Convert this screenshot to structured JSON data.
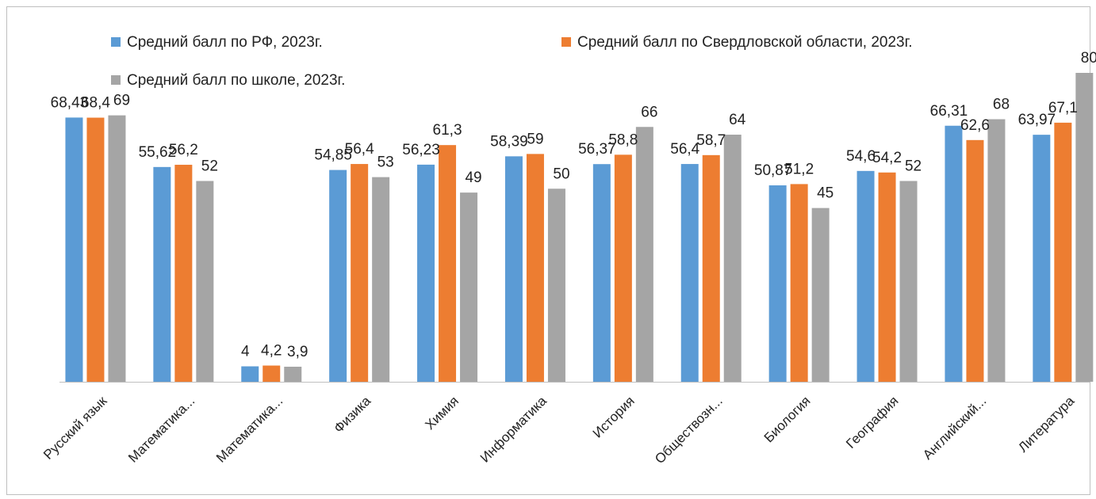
{
  "chart_data": {
    "type": "bar",
    "categories": [
      "Русский язык",
      "Математика...",
      "Математика...",
      "Физика",
      "Химия",
      "Информатика",
      "История",
      "Обществозн...",
      "Биология",
      "География",
      "Английский...",
      "Литература"
    ],
    "series": [
      {
        "name": "Средний балл по РФ, 2023г.",
        "color": "#5b9bd5",
        "values": [
          68.43,
          55.62,
          4,
          54.85,
          56.23,
          58.39,
          56.37,
          56.4,
          50.87,
          54.6,
          66.31,
          63.97
        ],
        "value_labels": [
          "68,43",
          "55,62",
          "4",
          "54,85",
          "56,23",
          "58,39",
          "56,37",
          "56,4",
          "50,87",
          "54,6",
          "66,31",
          "63,97"
        ]
      },
      {
        "name": "Средний балл по Свердловской области, 2023г.",
        "color": "#ed7d31",
        "values": [
          68.4,
          56.2,
          4.2,
          56.4,
          61.3,
          59,
          58.8,
          58.7,
          51.2,
          54.2,
          62.6,
          67.1
        ],
        "value_labels": [
          "68,4",
          "56,2",
          "4,2",
          "56,4",
          "61,3",
          "59",
          "58,8",
          "58,7",
          "51,2",
          "54,2",
          "62,6",
          "67,1"
        ]
      },
      {
        "name": "Средний балл по школе, 2023г.",
        "color": "#a5a5a5",
        "values": [
          69,
          52,
          3.9,
          53,
          49,
          50,
          66,
          64,
          45,
          52,
          68,
          80
        ],
        "value_labels": [
          "69",
          "52",
          "3,9",
          "53",
          "49",
          "50",
          "66",
          "64",
          "45",
          "52",
          "68",
          "80"
        ]
      }
    ]
  }
}
